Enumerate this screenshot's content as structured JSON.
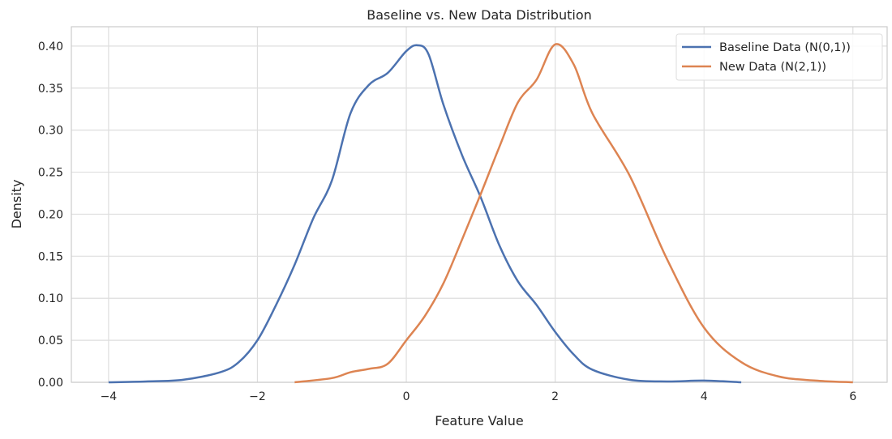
{
  "chart_data": {
    "type": "line",
    "title": "Baseline vs. New Data Distribution",
    "xlabel": "Feature Value",
    "ylabel": "Density",
    "xlim": [
      -4.5,
      6.46
    ],
    "ylim": [
      0,
      0.423
    ],
    "xticks": [
      -4,
      -2,
      0,
      2,
      4,
      6
    ],
    "xtick_labels": [
      "−4",
      "−2",
      "0",
      "2",
      "4",
      "6"
    ],
    "yticks": [
      0,
      0.05,
      0.1,
      0.15,
      0.2,
      0.25,
      0.3,
      0.35,
      0.4
    ],
    "ytick_labels": [
      "0.00",
      "0.05",
      "0.10",
      "0.15",
      "0.20",
      "0.25",
      "0.30",
      "0.35",
      "0.40"
    ],
    "grid": true,
    "legend_position": "top-right",
    "series": [
      {
        "name": "Baseline Data (N(0,1))",
        "color": "#4c72b0",
        "x": [
          -4,
          -3.5,
          -3,
          -2.5,
          -2.25,
          -2,
          -1.75,
          -1.5,
          -1.25,
          -1,
          -0.75,
          -0.5,
          -0.25,
          0,
          0.15,
          0.3,
          0.5,
          0.75,
          1,
          1.25,
          1.5,
          1.75,
          2,
          2.25,
          2.5,
          3,
          3.5,
          4,
          4.5
        ],
        "y": [
          0,
          0.001,
          0.003,
          0.012,
          0.024,
          0.05,
          0.092,
          0.14,
          0.195,
          0.24,
          0.32,
          0.354,
          0.368,
          0.394,
          0.401,
          0.39,
          0.33,
          0.27,
          0.22,
          0.163,
          0.12,
          0.092,
          0.06,
          0.033,
          0.015,
          0.003,
          0.001,
          0.002,
          0
        ]
      },
      {
        "name": "New Data (N(2,1))",
        "color": "#dd8452",
        "x": [
          -1.5,
          -1,
          -0.75,
          -0.5,
          -0.25,
          0,
          0.25,
          0.5,
          0.75,
          1,
          1.25,
          1.5,
          1.75,
          2,
          2.25,
          2.5,
          3,
          3.5,
          4,
          4.5,
          5,
          5.5,
          6
        ],
        "y": [
          0,
          0.005,
          0.012,
          0.016,
          0.022,
          0.05,
          0.079,
          0.118,
          0.17,
          0.224,
          0.28,
          0.333,
          0.36,
          0.402,
          0.378,
          0.32,
          0.246,
          0.147,
          0.065,
          0.024,
          0.007,
          0.002,
          0
        ]
      }
    ]
  }
}
